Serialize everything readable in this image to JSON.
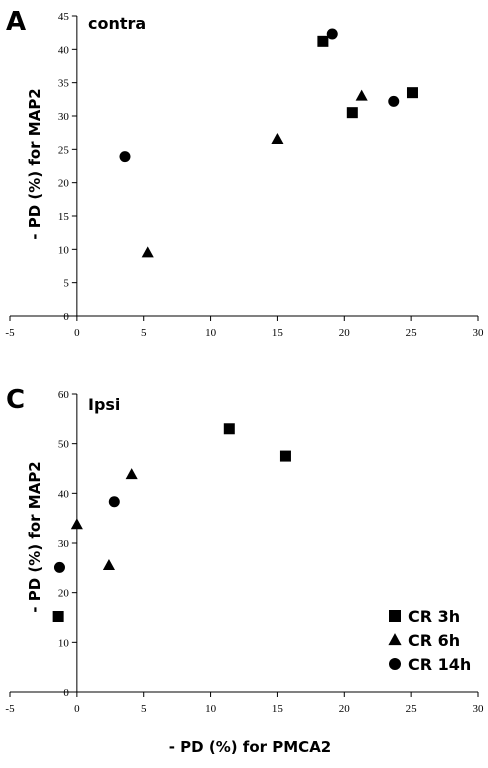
{
  "chart_data": [
    {
      "type": "scatter",
      "panel_letter": "A",
      "title": "contra",
      "xlabel": "",
      "ylabel": "- PD (%) for MAP2",
      "xlim": [
        -5,
        30
      ],
      "ylim": [
        0,
        45
      ],
      "xticks": [
        -5,
        0,
        5,
        10,
        15,
        20,
        25,
        30
      ],
      "yticks": [
        0,
        5,
        10,
        15,
        20,
        25,
        30,
        35,
        40,
        45
      ],
      "grid": false,
      "series": [
        {
          "name": "CR 3h",
          "marker": "square",
          "points": [
            [
              18.4,
              41.2
            ],
            [
              20.6,
              30.5
            ],
            [
              25.1,
              33.5
            ]
          ]
        },
        {
          "name": "CR 6h",
          "marker": "triangle",
          "points": [
            [
              5.3,
              9.5
            ],
            [
              15.0,
              26.5
            ],
            [
              21.3,
              33.0
            ]
          ]
        },
        {
          "name": "CR 14h",
          "marker": "circle",
          "points": [
            [
              3.6,
              23.9
            ],
            [
              19.1,
              42.3
            ],
            [
              23.7,
              32.2
            ]
          ]
        }
      ]
    },
    {
      "type": "scatter",
      "panel_letter": "C",
      "title": "Ipsi",
      "xlabel": "- PD (%) for PMCA2",
      "ylabel": "- PD (%) for MAP2",
      "xlim": [
        -5,
        30
      ],
      "ylim": [
        0,
        60
      ],
      "xticks": [
        -5,
        0,
        5,
        10,
        15,
        20,
        25,
        30
      ],
      "yticks": [
        0,
        10,
        20,
        30,
        40,
        50,
        60
      ],
      "grid": false,
      "legend": "bottom-right",
      "series": [
        {
          "name": "CR 3h",
          "marker": "square",
          "points": [
            [
              -1.4,
              15.2
            ],
            [
              11.4,
              53.0
            ],
            [
              15.6,
              47.5
            ]
          ]
        },
        {
          "name": "CR 6h",
          "marker": "triangle",
          "points": [
            [
              0.0,
              33.7
            ],
            [
              2.4,
              25.5
            ],
            [
              4.1,
              43.8
            ]
          ]
        },
        {
          "name": "CR 14h",
          "marker": "circle",
          "points": [
            [
              -1.3,
              25.1
            ],
            [
              2.8,
              38.3
            ]
          ]
        }
      ]
    }
  ]
}
